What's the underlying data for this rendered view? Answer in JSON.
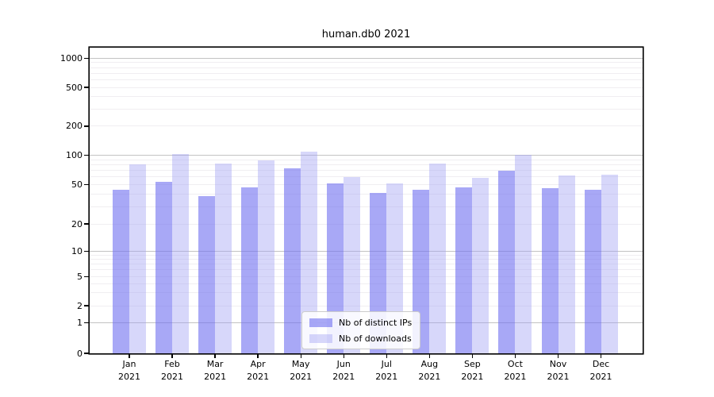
{
  "figure": {
    "title": "human.db0 2021"
  },
  "chart_data": {
    "type": "bar",
    "title": "human.db0 2021",
    "categories": [
      "Jan",
      "Feb",
      "Mar",
      "Apr",
      "May",
      "Jun",
      "Jul",
      "Aug",
      "Sep",
      "Oct",
      "Nov",
      "Dec"
    ],
    "x_year_label": "2021",
    "series": [
      {
        "name": "Nb of distinct IPs",
        "color": "rgba(110,110,240,0.60)",
        "values": [
          44,
          53,
          38,
          47,
          73,
          51,
          41,
          44,
          47,
          70,
          46,
          44
        ]
      },
      {
        "name": "Nb of downloads",
        "color": "rgba(160,160,242,0.42)",
        "values": [
          80,
          103,
          83,
          88,
          110,
          60,
          51,
          83,
          59,
          101,
          62,
          63
        ]
      }
    ],
    "y_axis": {
      "scale": "symlog",
      "tick_values": [
        0,
        1,
        2,
        5,
        10,
        20,
        50,
        100,
        200,
        500,
        1000
      ],
      "tick_labels": [
        "0",
        "1",
        "2",
        "5",
        "10",
        "20",
        "50",
        "100",
        "200",
        "500",
        "1000"
      ]
    },
    "legend": {
      "position": "lower center"
    },
    "grid": {
      "on": true,
      "major_color": "#c3c3c3",
      "minor_color": "#f0eef1"
    }
  }
}
